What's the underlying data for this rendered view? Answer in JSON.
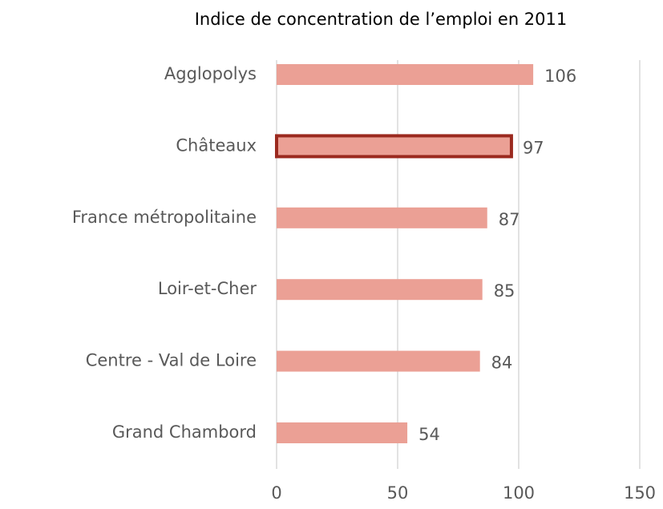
{
  "chart_data": {
    "type": "bar",
    "orientation": "horizontal",
    "title": "Indice de concentration de l’emploi en 2011",
    "categories": [
      "Agglopolys",
      "Châteaux",
      "France métropolitaine",
      "Loir-et-Cher",
      "Centre - Val de Loire",
      "Grand Chambord"
    ],
    "values": [
      106,
      97,
      87,
      85,
      84,
      54
    ],
    "color": "#eba095",
    "highlight_index": 1,
    "highlight_color": "#9b2a1f",
    "xlim": [
      0,
      150
    ],
    "xticks": [
      0,
      50,
      100,
      150
    ],
    "grid": true
  }
}
